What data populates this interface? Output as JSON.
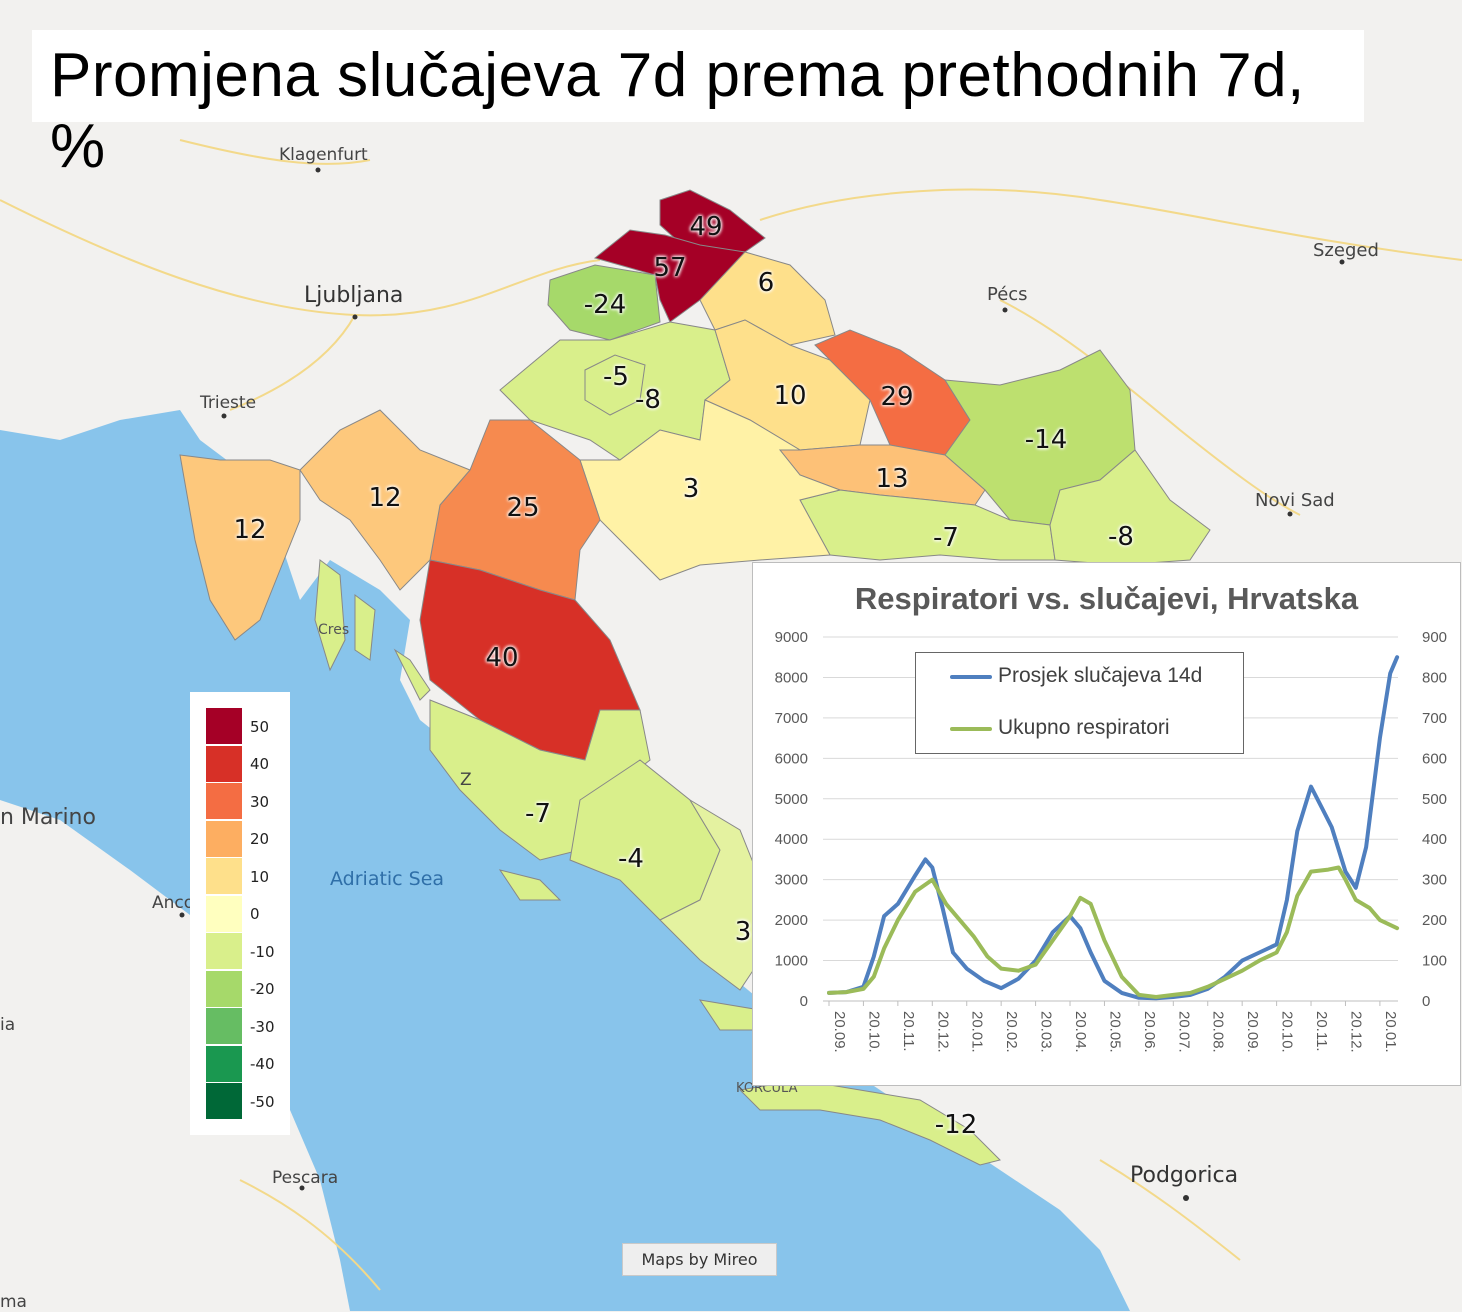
{
  "title": "Promjena slučajeva 7d prema prethodnih 7d, %",
  "colors": {
    "sea": "#88c4eb",
    "land": "#f2f1ef",
    "scale": {
      "50": "#a50026",
      "40": "#d73027",
      "30": "#f46d43",
      "20": "#fdae61",
      "10": "#fee08b",
      "0": "#ffffbf",
      "-10": "#d9ef8b",
      "-20": "#a6d96a",
      "-30": "#66bd63",
      "-40": "#1a9850",
      "-50": "#006837"
    },
    "series_blue": "#4f7fbf",
    "series_green": "#9bbb59"
  },
  "cities": [
    {
      "id": "klagenfurt",
      "name": "Klagenfurt"
    },
    {
      "id": "ljubljana",
      "name": "Ljubljana"
    },
    {
      "id": "trieste",
      "name": "Trieste"
    },
    {
      "id": "pecs",
      "name": "Pécs"
    },
    {
      "id": "szeged",
      "name": "Szeged"
    },
    {
      "id": "novisad",
      "name": "Novi Sad"
    },
    {
      "id": "sanmarino",
      "name": "n Marino"
    },
    {
      "id": "ancona",
      "name": "Anco"
    },
    {
      "id": "pescara",
      "name": "Pescara"
    },
    {
      "id": "podgorica",
      "name": "Podgorica"
    },
    {
      "id": "korcula",
      "name": "KORČULA"
    },
    {
      "id": "cres",
      "name": "Cres"
    },
    {
      "id": "zadar",
      "name": "Z"
    },
    {
      "id": "edge_left",
      "name": "ia"
    },
    {
      "id": "edge_bottom",
      "name": "ma"
    }
  ],
  "sea_label": "Adriatic Sea",
  "regions": [
    {
      "id": "medimurska",
      "value": "49"
    },
    {
      "id": "varazdinska",
      "value": "57"
    },
    {
      "id": "koprivnicko",
      "value": "6"
    },
    {
      "id": "krapinsko",
      "value": "-24"
    },
    {
      "id": "grad_zagreb",
      "value": "-5"
    },
    {
      "id": "zagrebacka",
      "value": "-8"
    },
    {
      "id": "bjelovarsko",
      "value": "10"
    },
    {
      "id": "viroviticko",
      "value": "29"
    },
    {
      "id": "osjecko",
      "value": "-14"
    },
    {
      "id": "pozesko",
      "value": "13"
    },
    {
      "id": "brodsko",
      "value": "-7"
    },
    {
      "id": "vukovarsko",
      "value": "-8"
    },
    {
      "id": "sisacko",
      "value": "3"
    },
    {
      "id": "karlovacka",
      "value": "25"
    },
    {
      "id": "istarska",
      "value": "12"
    },
    {
      "id": "primorsko",
      "value": "12"
    },
    {
      "id": "licko",
      "value": "40"
    },
    {
      "id": "zadarska",
      "value": "-7"
    },
    {
      "id": "sibensko",
      "value": "-4"
    },
    {
      "id": "splitsko",
      "value": "3"
    },
    {
      "id": "dubrovacko",
      "value": "-12"
    }
  ],
  "legend": {
    "labels": [
      "50",
      "40",
      "30",
      "20",
      "10",
      "0",
      "-10",
      "-20",
      "-30",
      "-40",
      "-50"
    ]
  },
  "credit": "Maps by Mireo",
  "chart_data": {
    "type": "line",
    "title": "Respiratori vs. slučajevi, Hrvatska",
    "x": [
      "20.09.",
      "20.10.",
      "20.11.",
      "20.12.",
      "20.01.",
      "20.02.",
      "20.03.",
      "20.04.",
      "20.05.",
      "20.06.",
      "20.07.",
      "20.08.",
      "20.09.",
      "20.10.",
      "20.11.",
      "20.12.",
      "20.01."
    ],
    "y_left": {
      "ylim": [
        0,
        9000
      ],
      "ticks": [
        "0",
        "1000",
        "2000",
        "3000",
        "4000",
        "5000",
        "6000",
        "7000",
        "8000",
        "9000"
      ]
    },
    "y_right": {
      "ylim": [
        0,
        900
      ],
      "ticks": [
        "0",
        "100",
        "200",
        "300",
        "400",
        "500",
        "600",
        "700",
        "800",
        "900"
      ]
    },
    "legend_position": "top-left",
    "series": [
      {
        "name": "Prosjek slučajeva 14d",
        "axis": "left",
        "points": [
          [
            0,
            200
          ],
          [
            0.5,
            220
          ],
          [
            1,
            350
          ],
          [
            1.3,
            1100
          ],
          [
            1.6,
            2100
          ],
          [
            2,
            2400
          ],
          [
            2.5,
            3100
          ],
          [
            2.8,
            3500
          ],
          [
            3,
            3300
          ],
          [
            3.3,
            2300
          ],
          [
            3.6,
            1200
          ],
          [
            4,
            800
          ],
          [
            4.5,
            500
          ],
          [
            5,
            320
          ],
          [
            5.5,
            550
          ],
          [
            6,
            1000
          ],
          [
            6.5,
            1700
          ],
          [
            7,
            2100
          ],
          [
            7.3,
            1800
          ],
          [
            7.6,
            1200
          ],
          [
            8,
            500
          ],
          [
            8.5,
            200
          ],
          [
            9,
            80
          ],
          [
            9.5,
            70
          ],
          [
            10,
            100
          ],
          [
            10.5,
            150
          ],
          [
            11,
            300
          ],
          [
            11.5,
            600
          ],
          [
            12,
            1000
          ],
          [
            12.5,
            1200
          ],
          [
            13,
            1400
          ],
          [
            13.3,
            2500
          ],
          [
            13.6,
            4200
          ],
          [
            14,
            5300
          ],
          [
            14.3,
            4800
          ],
          [
            14.6,
            4300
          ],
          [
            15,
            3200
          ],
          [
            15.3,
            2800
          ],
          [
            15.6,
            3800
          ],
          [
            16,
            6500
          ],
          [
            16.3,
            8100
          ],
          [
            16.5,
            8500
          ]
        ]
      },
      {
        "name": "Ukupno respiratori",
        "axis": "right",
        "points": [
          [
            0,
            20
          ],
          [
            0.5,
            22
          ],
          [
            1,
            30
          ],
          [
            1.3,
            60
          ],
          [
            1.6,
            130
          ],
          [
            2,
            200
          ],
          [
            2.5,
            270
          ],
          [
            3,
            300
          ],
          [
            3.4,
            240
          ],
          [
            3.8,
            200
          ],
          [
            4.2,
            160
          ],
          [
            4.6,
            110
          ],
          [
            5,
            80
          ],
          [
            5.5,
            75
          ],
          [
            6,
            90
          ],
          [
            6.5,
            150
          ],
          [
            7,
            210
          ],
          [
            7.3,
            255
          ],
          [
            7.6,
            240
          ],
          [
            8,
            150
          ],
          [
            8.5,
            60
          ],
          [
            9,
            15
          ],
          [
            9.5,
            10
          ],
          [
            10,
            15
          ],
          [
            10.5,
            20
          ],
          [
            11,
            35
          ],
          [
            11.5,
            55
          ],
          [
            12,
            75
          ],
          [
            12.5,
            100
          ],
          [
            13,
            120
          ],
          [
            13.3,
            170
          ],
          [
            13.6,
            260
          ],
          [
            14,
            320
          ],
          [
            14.5,
            325
          ],
          [
            14.8,
            330
          ],
          [
            15,
            300
          ],
          [
            15.3,
            250
          ],
          [
            15.7,
            230
          ],
          [
            16,
            200
          ],
          [
            16.5,
            180
          ]
        ]
      }
    ]
  }
}
